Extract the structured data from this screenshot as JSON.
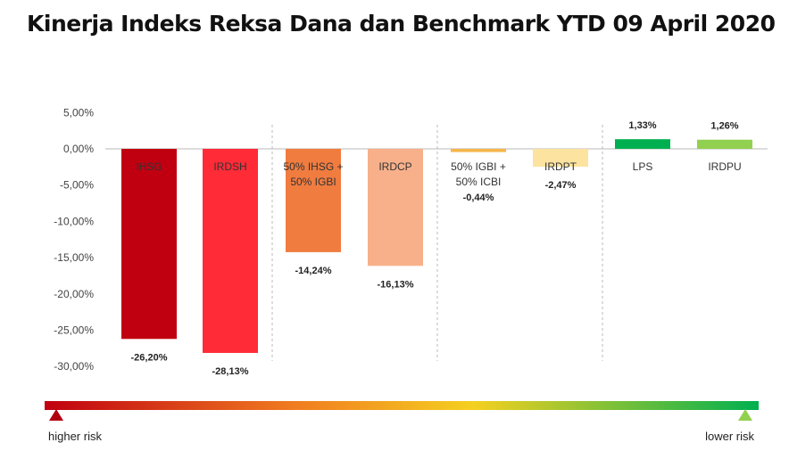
{
  "chart_data": {
    "type": "bar",
    "title": "Kinerja Indeks Reksa Dana dan Benchmark YTD 09 April 2020",
    "xlabel": "",
    "ylabel": "",
    "ylim": [
      -30,
      5
    ],
    "yticks": [
      5,
      0,
      -5,
      -10,
      -15,
      -20,
      -25,
      -30
    ],
    "ytick_labels": [
      "5,00%",
      "0,00%",
      "-5,00%",
      "-10,00%",
      "-15,00%",
      "-20,00%",
      "-25,00%",
      "-30,00%"
    ],
    "grid": false,
    "groups_separated_by_dashed_lines": [
      [
        0,
        1
      ],
      [
        2,
        3
      ],
      [
        4,
        5
      ],
      [
        6,
        7
      ]
    ],
    "categories": [
      "IHSG",
      "IRDSH",
      "50% IHSG +\n50% IGBI",
      "IRDCP",
      "50% IGBI +\n50% ICBI",
      "IRDPT",
      "LPS",
      "IRDPU"
    ],
    "values": [
      -26.2,
      -28.13,
      -14.24,
      -16.13,
      -0.44,
      -2.47,
      1.33,
      1.26
    ],
    "value_labels": [
      "-26,20%",
      "-28,13%",
      "-14,24%",
      "-16,13%",
      "-0,44%",
      "-2,47%",
      "1,33%",
      "1,26%"
    ],
    "colors": [
      "#c00010",
      "#ff2b37",
      "#f07c40",
      "#f7b08a",
      "#f5b54a",
      "#fde3a0",
      "#00b050",
      "#92d050"
    ]
  },
  "risk_scale": {
    "left_label": "higher risk",
    "right_label": "lower risk",
    "left_color": "#c00010",
    "mid_color": "#f5d020",
    "right_color": "#00b050"
  }
}
